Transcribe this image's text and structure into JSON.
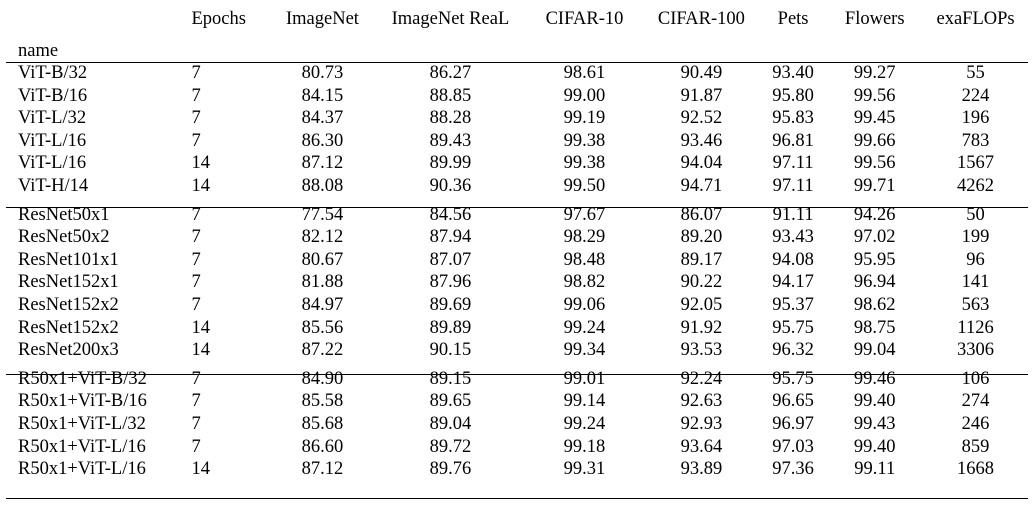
{
  "table": {
    "columns": [
      "Epochs",
      "ImageNet",
      "ImageNet ReaL",
      "CIFAR-10",
      "CIFAR-100",
      "Pets",
      "Flowers",
      "exaFLOPs"
    ],
    "index_label": "name",
    "groups": [
      {
        "rows": [
          {
            "name": "ViT-B/32",
            "epochs": "7",
            "imagenet": "80.73",
            "real": "86.27",
            "cifar10": "98.61",
            "cifar100": "90.49",
            "pets": "93.40",
            "flowers": "99.27",
            "exaflops": "55"
          },
          {
            "name": "ViT-B/16",
            "epochs": "7",
            "imagenet": "84.15",
            "real": "88.85",
            "cifar10": "99.00",
            "cifar100": "91.87",
            "pets": "95.80",
            "flowers": "99.56",
            "exaflops": "224"
          },
          {
            "name": "ViT-L/32",
            "epochs": "7",
            "imagenet": "84.37",
            "real": "88.28",
            "cifar10": "99.19",
            "cifar100": "92.52",
            "pets": "95.83",
            "flowers": "99.45",
            "exaflops": "196"
          },
          {
            "name": "ViT-L/16",
            "epochs": "7",
            "imagenet": "86.30",
            "real": "89.43",
            "cifar10": "99.38",
            "cifar100": "93.46",
            "pets": "96.81",
            "flowers": "99.66",
            "exaflops": "783"
          },
          {
            "name": "ViT-L/16",
            "epochs": "14",
            "imagenet": "87.12",
            "real": "89.99",
            "cifar10": "99.38",
            "cifar100": "94.04",
            "pets": "97.11",
            "flowers": "99.56",
            "exaflops": "1567"
          },
          {
            "name": "ViT-H/14",
            "epochs": "14",
            "imagenet": "88.08",
            "real": "90.36",
            "cifar10": "99.50",
            "cifar100": "94.71",
            "pets": "97.11",
            "flowers": "99.71",
            "exaflops": "4262"
          }
        ]
      },
      {
        "rows": [
          {
            "name": "ResNet50x1",
            "epochs": "7",
            "imagenet": "77.54",
            "real": "84.56",
            "cifar10": "97.67",
            "cifar100": "86.07",
            "pets": "91.11",
            "flowers": "94.26",
            "exaflops": "50"
          },
          {
            "name": "ResNet50x2",
            "epochs": "7",
            "imagenet": "82.12",
            "real": "87.94",
            "cifar10": "98.29",
            "cifar100": "89.20",
            "pets": "93.43",
            "flowers": "97.02",
            "exaflops": "199"
          },
          {
            "name": "ResNet101x1",
            "epochs": "7",
            "imagenet": "80.67",
            "real": "87.07",
            "cifar10": "98.48",
            "cifar100": "89.17",
            "pets": "94.08",
            "flowers": "95.95",
            "exaflops": "96"
          },
          {
            "name": "ResNet152x1",
            "epochs": "7",
            "imagenet": "81.88",
            "real": "87.96",
            "cifar10": "98.82",
            "cifar100": "90.22",
            "pets": "94.17",
            "flowers": "96.94",
            "exaflops": "141"
          },
          {
            "name": "ResNet152x2",
            "epochs": "7",
            "imagenet": "84.97",
            "real": "89.69",
            "cifar10": "99.06",
            "cifar100": "92.05",
            "pets": "95.37",
            "flowers": "98.62",
            "exaflops": "563"
          },
          {
            "name": "ResNet152x2",
            "epochs": "14",
            "imagenet": "85.56",
            "real": "89.89",
            "cifar10": "99.24",
            "cifar100": "91.92",
            "pets": "95.75",
            "flowers": "98.75",
            "exaflops": "1126"
          },
          {
            "name": "ResNet200x3",
            "epochs": "14",
            "imagenet": "87.22",
            "real": "90.15",
            "cifar10": "99.34",
            "cifar100": "93.53",
            "pets": "96.32",
            "flowers": "99.04",
            "exaflops": "3306"
          }
        ]
      },
      {
        "rows": [
          {
            "name": "R50x1+ViT-B/32",
            "epochs": "7",
            "imagenet": "84.90",
            "real": "89.15",
            "cifar10": "99.01",
            "cifar100": "92.24",
            "pets": "95.75",
            "flowers": "99.46",
            "exaflops": "106"
          },
          {
            "name": "R50x1+ViT-B/16",
            "epochs": "7",
            "imagenet": "85.58",
            "real": "89.65",
            "cifar10": "99.14",
            "cifar100": "92.63",
            "pets": "96.65",
            "flowers": "99.40",
            "exaflops": "274"
          },
          {
            "name": "R50x1+ViT-L/32",
            "epochs": "7",
            "imagenet": "85.68",
            "real": "89.04",
            "cifar10": "99.24",
            "cifar100": "92.93",
            "pets": "96.97",
            "flowers": "99.43",
            "exaflops": "246"
          },
          {
            "name": "R50x1+ViT-L/16",
            "epochs": "7",
            "imagenet": "86.60",
            "real": "89.72",
            "cifar10": "99.18",
            "cifar100": "93.64",
            "pets": "97.03",
            "flowers": "99.40",
            "exaflops": "859"
          },
          {
            "name": "R50x1+ViT-L/16",
            "epochs": "14",
            "imagenet": "87.12",
            "real": "89.76",
            "cifar10": "99.31",
            "cifar100": "93.89",
            "pets": "97.36",
            "flowers": "99.11",
            "exaflops": "1668"
          }
        ]
      }
    ]
  }
}
